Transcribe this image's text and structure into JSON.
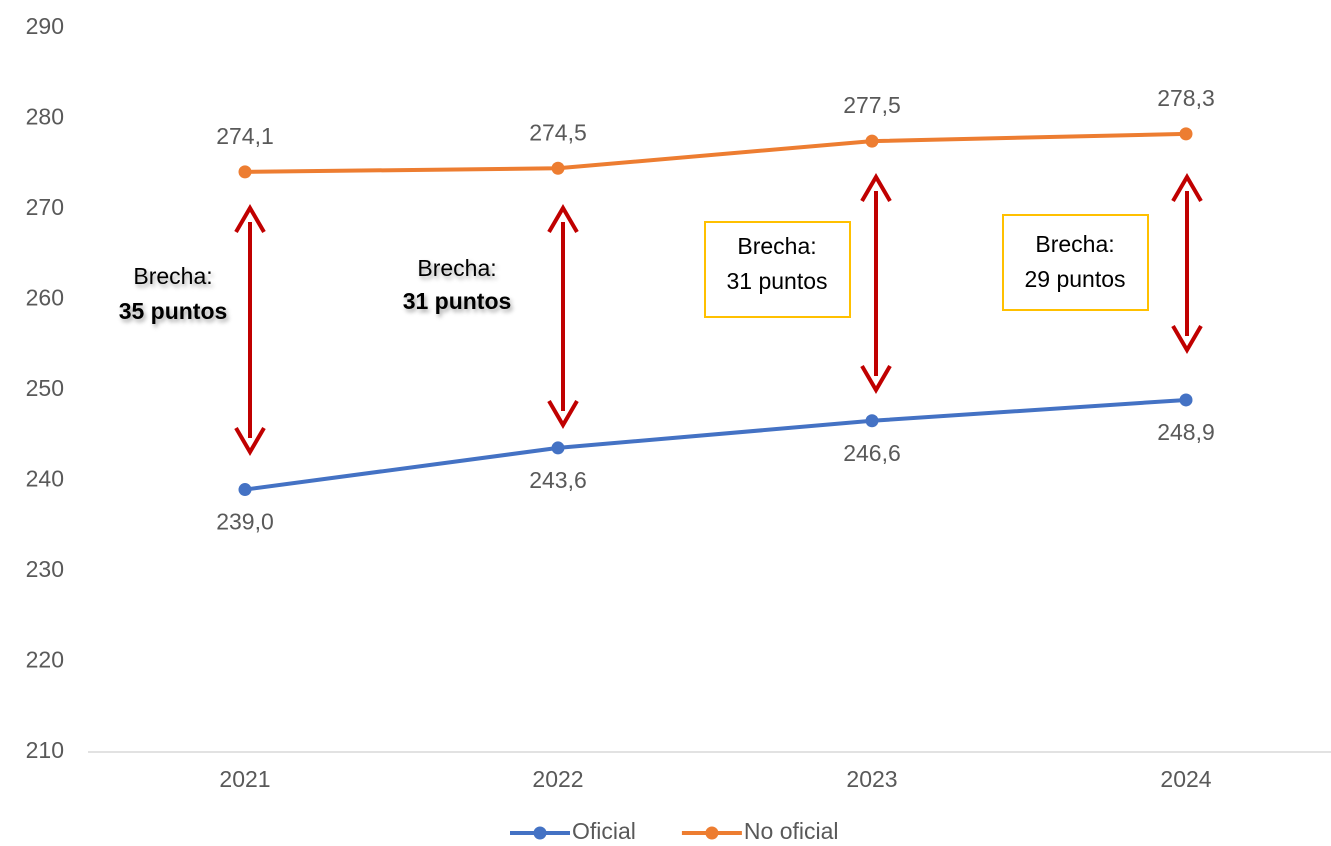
{
  "chart_data": {
    "type": "line",
    "categories": [
      "2021",
      "2022",
      "2023",
      "2024"
    ],
    "series": [
      {
        "name": "Oficial",
        "color": "#4472c4",
        "values": [
          239.0,
          243.6,
          246.6,
          248.9
        ],
        "value_labels": [
          "239,0",
          "243,6",
          "246,6",
          "248,9"
        ]
      },
      {
        "name": "No oficial",
        "color": "#ed7d31",
        "values": [
          274.1,
          274.5,
          277.5,
          278.3
        ],
        "value_labels": [
          "274,1",
          "274,5",
          "277,5",
          "278,3"
        ]
      }
    ],
    "ylim": [
      210,
      290
    ],
    "yticks": [
      210,
      220,
      230,
      240,
      250,
      260,
      270,
      280,
      290
    ],
    "annotations": [
      {
        "lines": [
          "Brecha:",
          "35 puntos"
        ],
        "boxed": false
      },
      {
        "lines": [
          "Brecha:",
          "31 puntos"
        ],
        "boxed": false
      },
      {
        "lines": [
          "Brecha:",
          "31 puntos"
        ],
        "boxed": true
      },
      {
        "lines": [
          "Brecha:",
          "29 puntos"
        ],
        "boxed": true
      }
    ],
    "legend": "bottom"
  }
}
